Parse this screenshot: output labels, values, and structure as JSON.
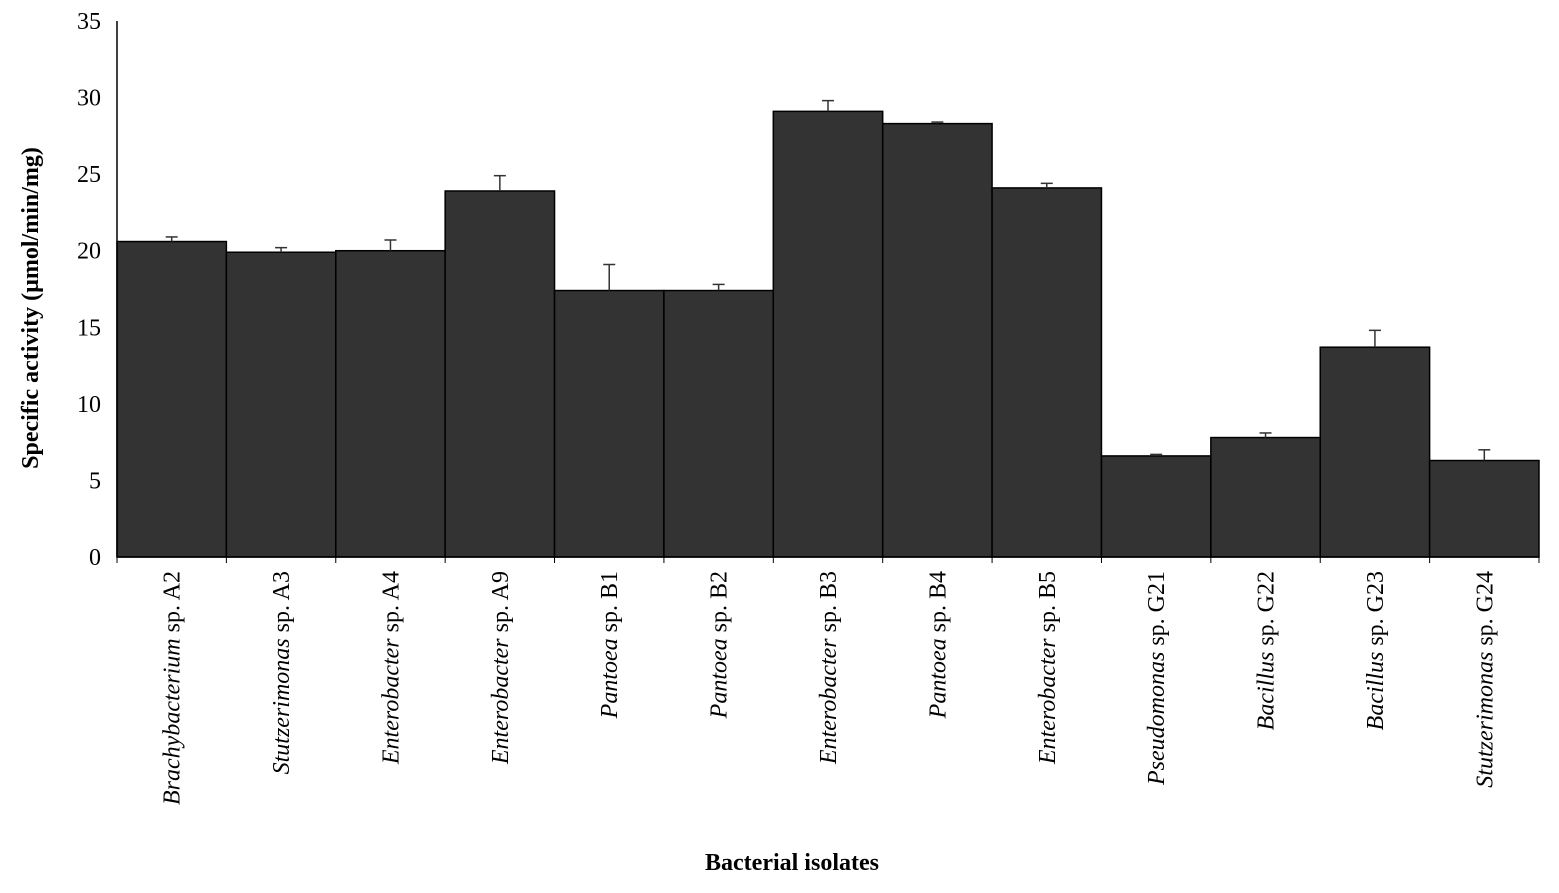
{
  "chart_data": {
    "type": "bar",
    "title": "",
    "xlabel": "Bacterial isolates",
    "ylabel": "Specific activity (µmol/min/mg)",
    "ylim": [
      0,
      35
    ],
    "yticks": [
      0,
      5,
      10,
      15,
      20,
      25,
      30,
      35
    ],
    "grid": false,
    "bar_color": "#333333",
    "categories": [
      {
        "genus": "Brachybacterium",
        "suffix": " sp. A2"
      },
      {
        "genus": "Stutzerimonas",
        "suffix": " sp. A3"
      },
      {
        "genus": "Enterobacter",
        "suffix": " sp. A4"
      },
      {
        "genus": "Enterobacter",
        "suffix": " sp. A9"
      },
      {
        "genus": "Pantoea",
        "suffix": " sp. B1"
      },
      {
        "genus": "Pantoea",
        "suffix": " sp. B2"
      },
      {
        "genus": "Enterobacter",
        "suffix": " sp. B3"
      },
      {
        "genus": "Pantoea",
        "suffix": " sp. B4"
      },
      {
        "genus": "Enterobacter",
        "suffix": " sp. B5"
      },
      {
        "genus": "Pseudomonas",
        "suffix": " sp. G21"
      },
      {
        "genus": "Bacillus",
        "suffix": " sp. G22"
      },
      {
        "genus": "Bacillus",
        "suffix": " sp. G23"
      },
      {
        "genus": "Stutzerimonas",
        "suffix": " sp. G24"
      }
    ],
    "values": [
      20.6,
      19.9,
      20.0,
      23.9,
      17.4,
      17.4,
      29.1,
      28.3,
      24.1,
      6.6,
      7.8,
      13.7,
      6.3
    ],
    "errors": [
      0.3,
      0.3,
      0.7,
      1.0,
      1.7,
      0.4,
      0.7,
      0.1,
      0.3,
      0.1,
      0.3,
      1.1,
      0.7
    ]
  }
}
